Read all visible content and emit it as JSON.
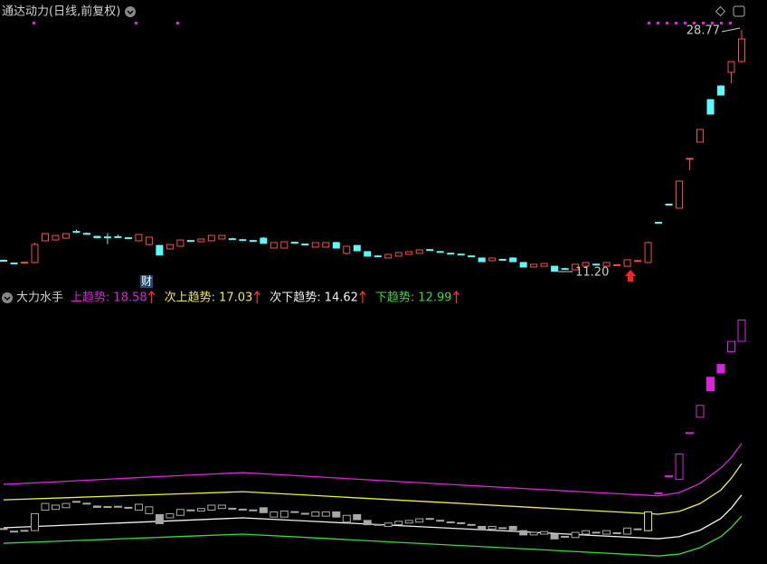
{
  "header": {
    "title": "通达动力(日线,前复权)"
  },
  "chart_data": [
    {
      "type": "candlestick",
      "up_color": "#ff4a4a",
      "down_color": "#54ffff",
      "annotations": [
        28.77,
        {
          "value": 11.2,
          "label": "11.20"
        }
      ],
      "badge": "财",
      "open": [
        12.02,
        11.82,
        11.82,
        11.86,
        13.44,
        13.5,
        13.63,
        14.12,
        13.98,
        13.76,
        13.72,
        13.74,
        13.66,
        13.44,
        13.17,
        13.1,
        12.85,
        13.04,
        13.46,
        13.37,
        13.44,
        13.57,
        13.59,
        13.52,
        13.46,
        13.63,
        12.91,
        12.91,
        13.33,
        13.2,
        12.98,
        12.98,
        13.31,
        12.52,
        13.1,
        12.65,
        12.34,
        12.19,
        12.32,
        12.45,
        12.52,
        12.8,
        12.66,
        12.54,
        12.47,
        12.34,
        12.19,
        11.99,
        12.09,
        12.19,
        11.86,
        11.53,
        11.59,
        11.59,
        11.42,
        11.33,
        11.59,
        11.74,
        11.59,
        11.68,
        11.59,
        11.97,
        11.86,
        14.78,
        16.1,
        15.81,
        19.41,
        20.61,
        23.7,
        24.69,
        25.68,
        26.47
      ],
      "high": [
        12.08,
        11.86,
        11.9,
        13.3,
        14.0,
        13.86,
        14.0,
        14.25,
        14.05,
        13.8,
        14.0,
        13.88,
        13.7,
        13.92,
        13.72,
        13.14,
        13.2,
        13.52,
        13.5,
        13.6,
        13.86,
        13.86,
        13.66,
        13.58,
        13.5,
        13.7,
        13.33,
        13.4,
        13.38,
        13.24,
        13.34,
        13.33,
        13.36,
        13.08,
        13.14,
        12.68,
        12.38,
        12.48,
        12.62,
        12.68,
        12.8,
        12.84,
        12.7,
        12.58,
        12.5,
        12.38,
        12.22,
        12.22,
        12.12,
        12.24,
        11.9,
        11.76,
        11.82,
        11.62,
        11.48,
        11.76,
        11.88,
        11.8,
        11.9,
        11.74,
        12.08,
        12.04,
        13.4,
        14.82,
        16.14,
        17.82,
        19.43,
        21.56,
        23.74,
        24.75,
        26.5,
        28.77
      ],
      "low": [
        11.92,
        11.74,
        11.8,
        11.8,
        13.4,
        13.45,
        13.58,
        14.0,
        13.9,
        13.62,
        13.2,
        13.66,
        13.55,
        13.4,
        13.12,
        12.38,
        12.8,
        13.0,
        13.38,
        13.33,
        13.4,
        13.55,
        13.5,
        13.44,
        13.38,
        13.22,
        12.88,
        12.88,
        13.26,
        13.12,
        12.95,
        12.95,
        12.88,
        12.45,
        12.68,
        12.28,
        12.26,
        12.15,
        12.3,
        12.42,
        12.5,
        12.72,
        12.58,
        12.46,
        12.4,
        12.26,
        11.9,
        11.96,
        12.01,
        11.9,
        11.5,
        11.5,
        11.56,
        11.2,
        11.35,
        11.3,
        11.56,
        11.68,
        11.56,
        11.62,
        11.56,
        11.92,
        11.82,
        14.72,
        16.04,
        15.78,
        18.57,
        20.58,
        22.62,
        24.0,
        24.89,
        26.4
      ],
      "close": [
        11.96,
        11.78,
        11.88,
        13.17,
        13.96,
        13.83,
        13.96,
        14.08,
        13.95,
        13.66,
        13.7,
        13.68,
        13.6,
        13.9,
        13.7,
        12.4,
        13.17,
        13.5,
        13.42,
        13.57,
        13.83,
        13.83,
        13.55,
        13.48,
        13.4,
        13.25,
        13.31,
        13.37,
        13.28,
        13.14,
        13.31,
        13.31,
        12.91,
        13.04,
        12.71,
        12.32,
        12.29,
        12.45,
        12.58,
        12.65,
        12.78,
        12.76,
        12.62,
        12.5,
        12.43,
        12.3,
        11.92,
        12.19,
        12.04,
        11.92,
        11.53,
        11.73,
        11.79,
        11.22,
        11.4,
        11.73,
        11.86,
        11.72,
        11.86,
        11.7,
        12.06,
        12.0,
        13.31,
        14.76,
        16.08,
        17.78,
        19.43,
        21.53,
        22.65,
        24.03,
        26.47,
        28.11
      ]
    },
    {
      "type": "indicator",
      "title": "大力水手",
      "legend_separator": ":",
      "box_color": "#a8a8a8",
      "arrow_color": "#ff3030",
      "series": [
        {
          "name": "上趋势",
          "color": "#e020e0",
          "x": [
            0,
            6,
            12,
            18,
            23,
            30,
            37,
            44,
            51,
            57,
            63,
            65,
            67,
            69,
            70,
            71
          ],
          "values": [
            15.43,
            15.67,
            15.91,
            16.15,
            16.34,
            16.02,
            15.7,
            15.38,
            15.07,
            14.8,
            14.55,
            14.8,
            15.5,
            16.7,
            17.5,
            18.58
          ]
        },
        {
          "name": "次上趋势",
          "color": "#f0f030",
          "x": [
            0,
            6,
            12,
            18,
            23,
            30,
            37,
            44,
            51,
            57,
            63,
            65,
            67,
            69,
            70,
            71
          ],
          "values": [
            14.24,
            14.4,
            14.57,
            14.73,
            14.87,
            14.57,
            14.26,
            13.96,
            13.65,
            13.39,
            13.13,
            13.35,
            13.95,
            15.0,
            15.9,
            17.03
          ]
        },
        {
          "name": "次下趋势",
          "color": "#f0f0f0",
          "x": [
            0,
            6,
            12,
            18,
            23,
            30,
            37,
            44,
            51,
            57,
            63,
            65,
            67,
            69,
            70,
            71
          ],
          "values": [
            12.08,
            12.28,
            12.48,
            12.68,
            12.85,
            12.57,
            12.29,
            12.01,
            11.73,
            11.48,
            11.24,
            11.4,
            11.9,
            12.8,
            13.6,
            14.62
          ]
        },
        {
          "name": "下趋势",
          "color": "#30e030",
          "x": [
            0,
            6,
            12,
            18,
            23,
            30,
            37,
            44,
            51,
            57,
            63,
            65,
            67,
            69,
            70,
            71
          ],
          "values": [
            10.89,
            11.07,
            11.25,
            11.44,
            11.59,
            11.3,
            11.0,
            10.71,
            10.42,
            10.16,
            9.91,
            10.05,
            10.55,
            11.4,
            12.1,
            12.99
          ]
        }
      ]
    }
  ]
}
